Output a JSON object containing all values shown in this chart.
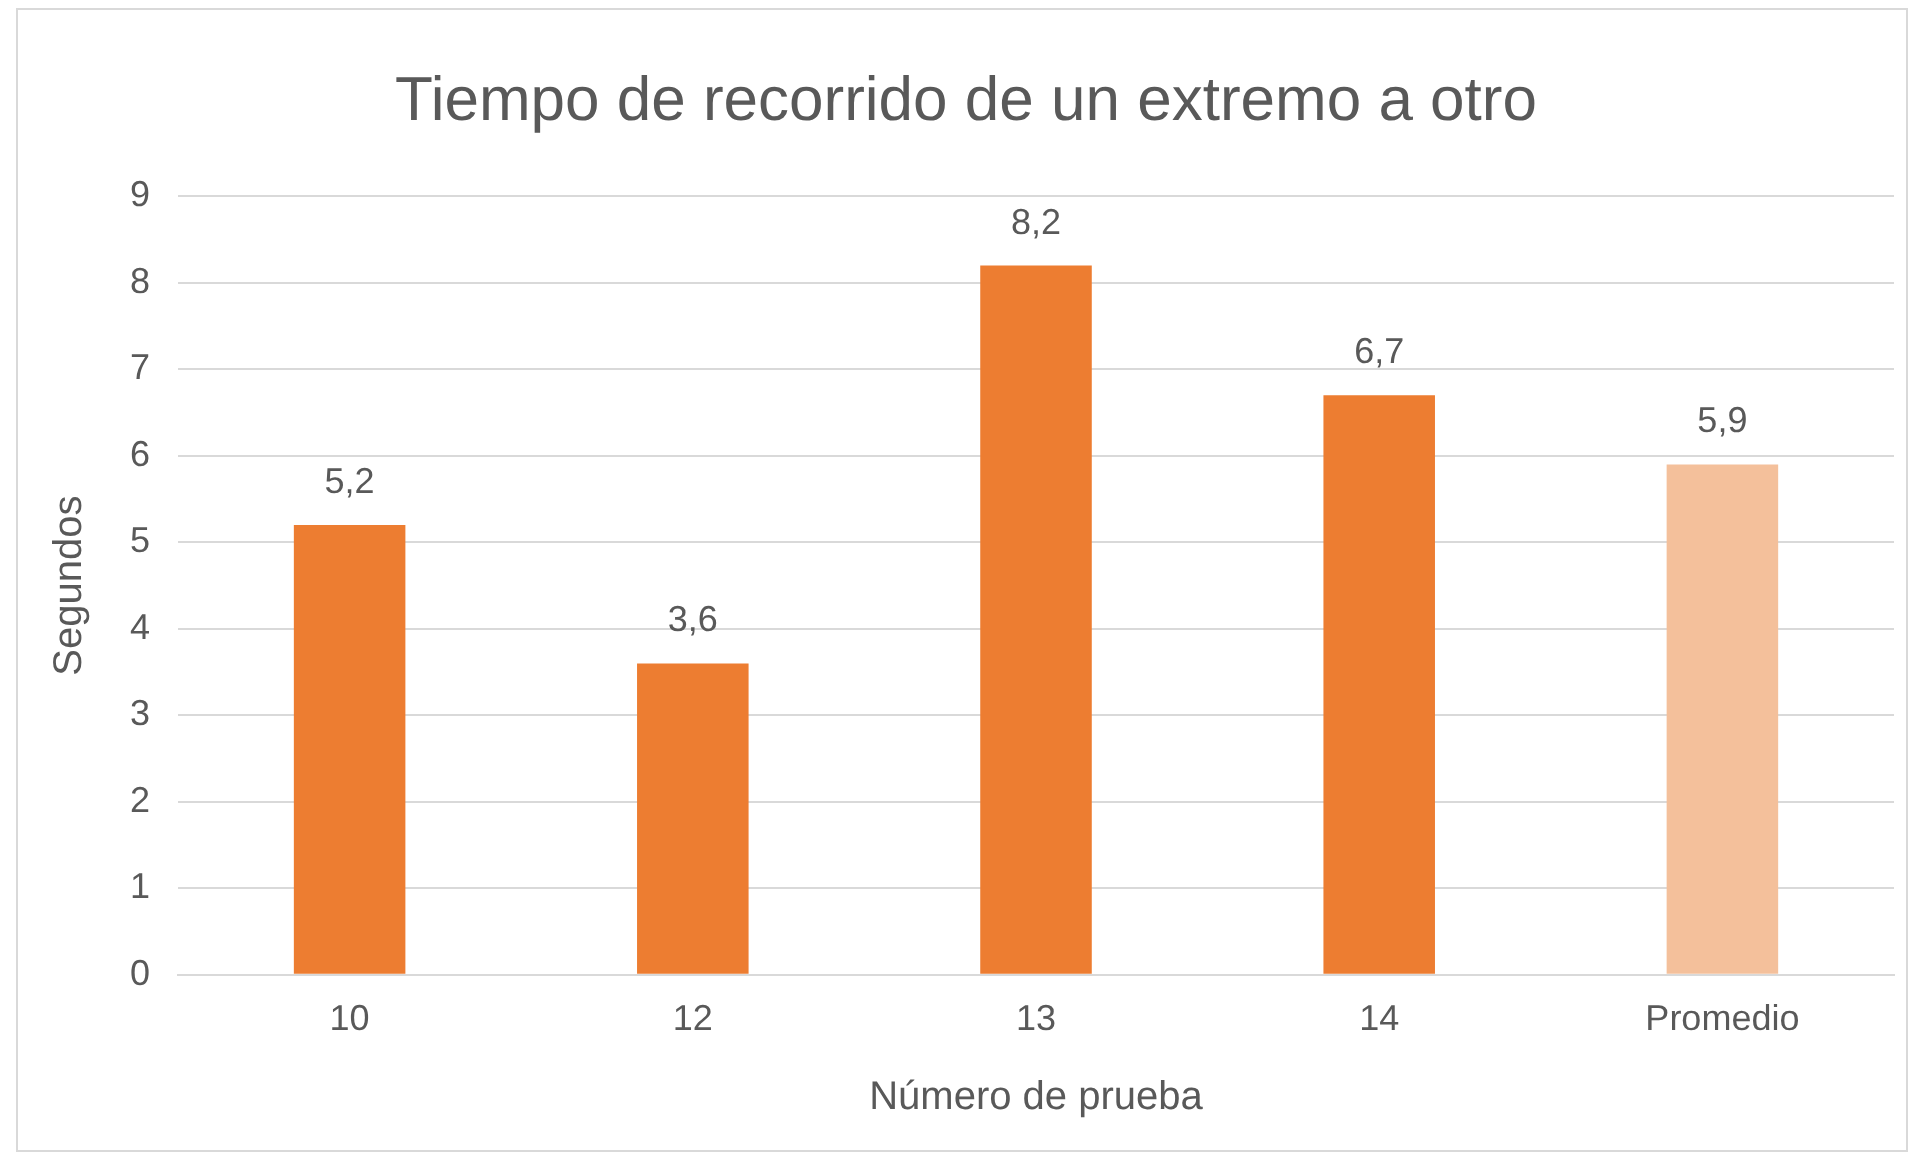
{
  "chart_data": {
    "type": "bar",
    "title": "Tiempo de recorrido de un extremo a otro",
    "xlabel": "Número de prueba",
    "ylabel": "Segundos",
    "categories": [
      "10",
      "12",
      "13",
      "14",
      "Promedio"
    ],
    "values": [
      5.2,
      3.6,
      8.2,
      6.7,
      5.9
    ],
    "value_labels": [
      "5,2",
      "3,6",
      "8,2",
      "6,7",
      "5,9"
    ],
    "colors": [
      "#ed7d31",
      "#ed7d31",
      "#ed7d31",
      "#ed7d31",
      "#f4c09b"
    ],
    "ylim": [
      0,
      9
    ],
    "yticks": [
      0,
      1,
      2,
      3,
      4,
      5,
      6,
      7,
      8,
      9
    ],
    "grid": "y",
    "legend": false
  }
}
